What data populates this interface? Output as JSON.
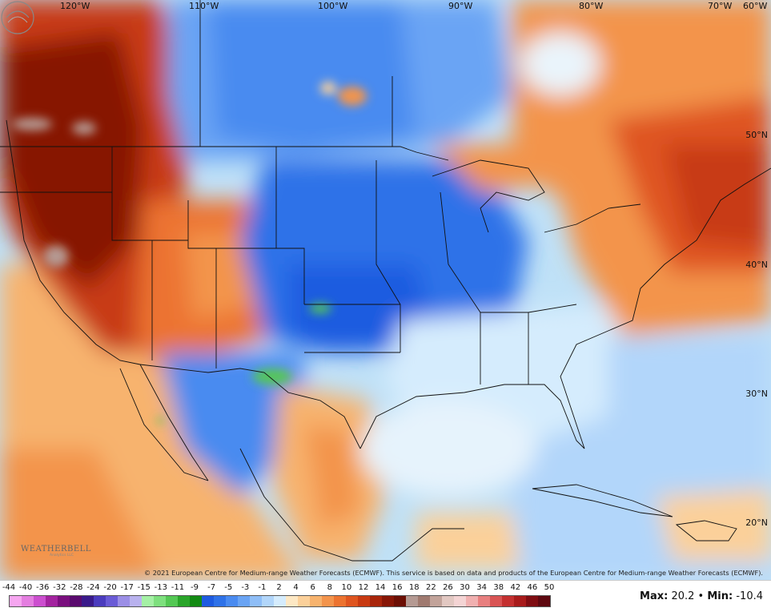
{
  "map": {
    "longitude_labels": [
      "120°W",
      "110°W",
      "100°W",
      "90°W",
      "80°W",
      "70°W",
      "60°W"
    ],
    "latitude_labels": [
      "50°N",
      "40°N",
      "30°N",
      "20°N"
    ],
    "credit": "© 2021 European Centre for Medium-range Weather Forecasts (ECMWF). This service is based on data and products of the European Centre for Medium-range Weather Forecasts (ECMWF).",
    "logo_text": "WEATHERBELL",
    "logo_sub": "Analytics LLC"
  },
  "legend": {
    "ticks": [
      "-44",
      "-40",
      "-36",
      "-32",
      "-28",
      "-24",
      "-20",
      "-17",
      "-15",
      "-13",
      "-11",
      "-9",
      "-7",
      "-5",
      "-3",
      "-1",
      "2",
      "4",
      "6",
      "8",
      "10",
      "12",
      "14",
      "16",
      "18",
      "22",
      "26",
      "30",
      "34",
      "38",
      "42",
      "46",
      "50"
    ],
    "colors": [
      "#f6a6f0",
      "#e47ee0",
      "#cc4fcf",
      "#a3239f",
      "#7a0f7e",
      "#5a0a6e",
      "#3a1a8a",
      "#4b3cbe",
      "#6a5bd6",
      "#9b8ee6",
      "#b9b2ee",
      "#a5f0a5",
      "#7ee07e",
      "#54c854",
      "#2aa52a",
      "#138a13",
      "#1e5be0",
      "#2f72e8",
      "#4a8bf0",
      "#6aa4f4",
      "#8fbef7",
      "#b2d6fa",
      "#d5ecfd",
      "#fde8c4",
      "#fbd09a",
      "#f7b36e",
      "#f3944c",
      "#ec7330",
      "#df5520",
      "#c83a12",
      "#a8250b",
      "#871606",
      "#6c0f04",
      "#b59a93",
      "#a07a70",
      "#c2a39a",
      "#e2c8c2",
      "#f4d4d4",
      "#f0b0b0",
      "#e87f7f",
      "#d95454",
      "#c43030",
      "#a81b1b",
      "#7f0d12",
      "#5e0810"
    ],
    "max_label": "Max:",
    "max_value": "20.2",
    "separator": "•",
    "min_label": "Min:",
    "min_value": "-10.4"
  }
}
